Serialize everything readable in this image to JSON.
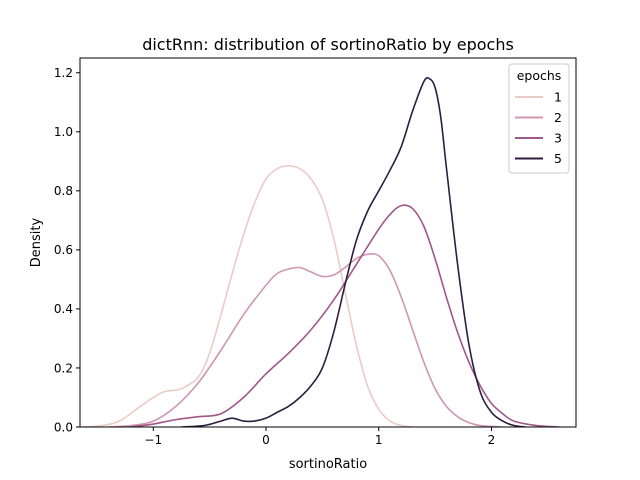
{
  "chart_data": {
    "type": "line",
    "title": "dictRnn: distribution of sortinoRatio by epochs",
    "xlabel": "sortinoRatio",
    "ylabel": "Density",
    "xlim": [
      -1.65,
      2.75
    ],
    "ylim": [
      0,
      1.25
    ],
    "xticks": [
      -1,
      0,
      1,
      2
    ],
    "xtick_labels": [
      "−1",
      "0",
      "1",
      "2"
    ],
    "yticks": [
      0.0,
      0.2,
      0.4,
      0.6,
      0.8,
      1.0,
      1.2
    ],
    "ytick_labels": [
      "0.0",
      "0.2",
      "0.4",
      "0.6",
      "0.8",
      "1.0",
      "1.2"
    ],
    "grid": false,
    "legend": {
      "title": "epochs",
      "placement": "top-right"
    },
    "series": [
      {
        "name": "1",
        "color": "#ebcbc5",
        "points": [
          [
            -1.62,
            0.0
          ],
          [
            -1.45,
            0.005
          ],
          [
            -1.3,
            0.02
          ],
          [
            -1.15,
            0.06
          ],
          [
            -1.0,
            0.1
          ],
          [
            -0.9,
            0.12
          ],
          [
            -0.75,
            0.13
          ],
          [
            -0.6,
            0.17
          ],
          [
            -0.5,
            0.25
          ],
          [
            -0.4,
            0.38
          ],
          [
            -0.3,
            0.52
          ],
          [
            -0.2,
            0.65
          ],
          [
            -0.1,
            0.76
          ],
          [
            0.0,
            0.84
          ],
          [
            0.1,
            0.875
          ],
          [
            0.2,
            0.885
          ],
          [
            0.3,
            0.875
          ],
          [
            0.4,
            0.84
          ],
          [
            0.5,
            0.77
          ],
          [
            0.6,
            0.64
          ],
          [
            0.7,
            0.46
          ],
          [
            0.8,
            0.28
          ],
          [
            0.9,
            0.14
          ],
          [
            1.0,
            0.06
          ],
          [
            1.1,
            0.02
          ],
          [
            1.2,
            0.005
          ],
          [
            1.3,
            0.0
          ]
        ]
      },
      {
        "name": "2",
        "color": "#d196b0",
        "points": [
          [
            -1.4,
            0.0
          ],
          [
            -1.2,
            0.005
          ],
          [
            -1.0,
            0.02
          ],
          [
            -0.8,
            0.07
          ],
          [
            -0.6,
            0.15
          ],
          [
            -0.4,
            0.26
          ],
          [
            -0.2,
            0.38
          ],
          [
            0.0,
            0.48
          ],
          [
            0.1,
            0.52
          ],
          [
            0.2,
            0.535
          ],
          [
            0.3,
            0.54
          ],
          [
            0.4,
            0.525
          ],
          [
            0.5,
            0.51
          ],
          [
            0.6,
            0.515
          ],
          [
            0.7,
            0.54
          ],
          [
            0.8,
            0.57
          ],
          [
            0.9,
            0.585
          ],
          [
            1.0,
            0.58
          ],
          [
            1.1,
            0.53
          ],
          [
            1.2,
            0.44
          ],
          [
            1.3,
            0.33
          ],
          [
            1.4,
            0.22
          ],
          [
            1.5,
            0.13
          ],
          [
            1.6,
            0.07
          ],
          [
            1.7,
            0.035
          ],
          [
            1.8,
            0.015
          ],
          [
            1.9,
            0.005
          ],
          [
            2.1,
            0.0
          ]
        ]
      },
      {
        "name": "3",
        "color": "#a0578a",
        "points": [
          [
            -1.2,
            0.0
          ],
          [
            -1.0,
            0.01
          ],
          [
            -0.8,
            0.025
          ],
          [
            -0.6,
            0.035
          ],
          [
            -0.4,
            0.045
          ],
          [
            -0.2,
            0.1
          ],
          [
            0.0,
            0.18
          ],
          [
            0.2,
            0.25
          ],
          [
            0.4,
            0.33
          ],
          [
            0.6,
            0.43
          ],
          [
            0.8,
            0.55
          ],
          [
            1.0,
            0.67
          ],
          [
            1.1,
            0.72
          ],
          [
            1.2,
            0.75
          ],
          [
            1.3,
            0.74
          ],
          [
            1.4,
            0.68
          ],
          [
            1.5,
            0.57
          ],
          [
            1.6,
            0.44
          ],
          [
            1.7,
            0.32
          ],
          [
            1.8,
            0.22
          ],
          [
            1.9,
            0.14
          ],
          [
            2.0,
            0.08
          ],
          [
            2.1,
            0.045
          ],
          [
            2.2,
            0.02
          ],
          [
            2.4,
            0.005
          ],
          [
            2.6,
            0.0
          ]
        ]
      },
      {
        "name": "5",
        "color": "#2d1e3e",
        "points": [
          [
            -0.75,
            0.0
          ],
          [
            -0.55,
            0.005
          ],
          [
            -0.4,
            0.02
          ],
          [
            -0.3,
            0.03
          ],
          [
            -0.2,
            0.02
          ],
          [
            -0.1,
            0.02
          ],
          [
            0.0,
            0.03
          ],
          [
            0.1,
            0.05
          ],
          [
            0.2,
            0.07
          ],
          [
            0.3,
            0.1
          ],
          [
            0.4,
            0.14
          ],
          [
            0.5,
            0.2
          ],
          [
            0.6,
            0.32
          ],
          [
            0.7,
            0.48
          ],
          [
            0.8,
            0.63
          ],
          [
            0.9,
            0.73
          ],
          [
            1.0,
            0.8
          ],
          [
            1.1,
            0.87
          ],
          [
            1.2,
            0.95
          ],
          [
            1.3,
            1.07
          ],
          [
            1.4,
            1.17
          ],
          [
            1.45,
            1.18
          ],
          [
            1.5,
            1.15
          ],
          [
            1.55,
            1.05
          ],
          [
            1.6,
            0.88
          ],
          [
            1.7,
            0.55
          ],
          [
            1.8,
            0.28
          ],
          [
            1.9,
            0.12
          ],
          [
            2.0,
            0.05
          ],
          [
            2.1,
            0.02
          ],
          [
            2.2,
            0.005
          ],
          [
            2.3,
            0.0
          ]
        ]
      }
    ]
  }
}
